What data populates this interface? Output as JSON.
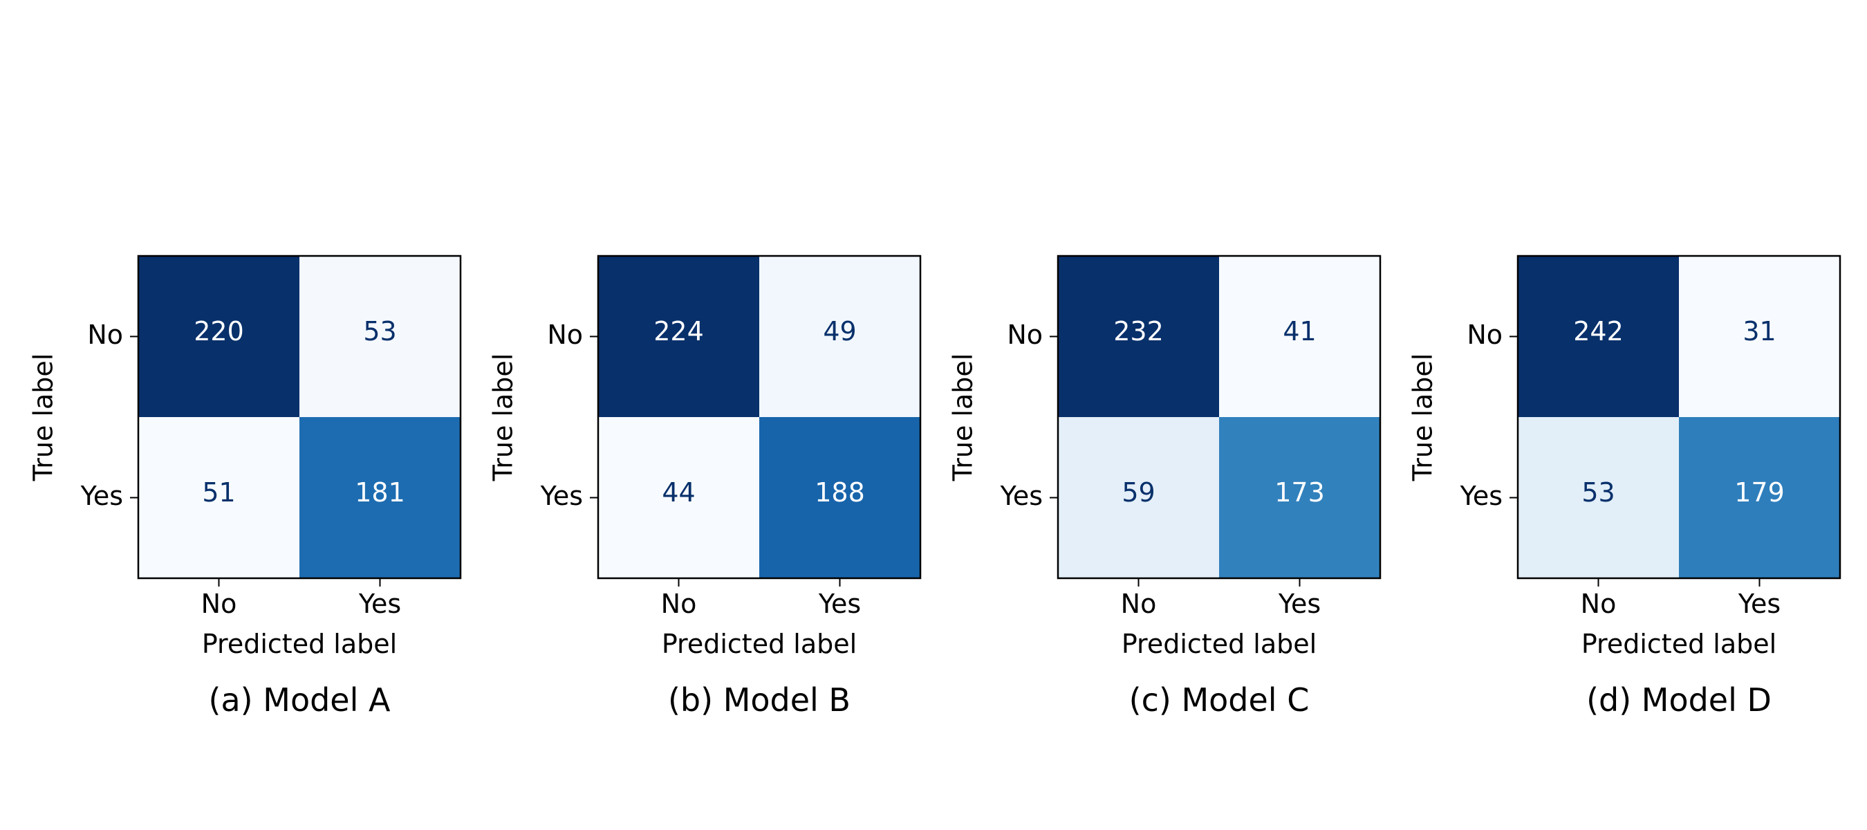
{
  "chart_data": [
    {
      "type": "heatmap",
      "caption": "(a) Model A",
      "xlabel": "Predicted label",
      "ylabel": "True label",
      "x_categories": [
        "No",
        "Yes"
      ],
      "y_categories": [
        "No",
        "Yes"
      ],
      "matrix": [
        [
          220,
          53
        ],
        [
          51,
          181
        ]
      ],
      "colormap": "Blues"
    },
    {
      "type": "heatmap",
      "caption": "(b) Model B",
      "xlabel": "Predicted label",
      "ylabel": "True label",
      "x_categories": [
        "No",
        "Yes"
      ],
      "y_categories": [
        "No",
        "Yes"
      ],
      "matrix": [
        [
          224,
          49
        ],
        [
          44,
          188
        ]
      ],
      "colormap": "Blues"
    },
    {
      "type": "heatmap",
      "caption": "(c) Model C",
      "xlabel": "Predicted label",
      "ylabel": "True label",
      "x_categories": [
        "No",
        "Yes"
      ],
      "y_categories": [
        "No",
        "Yes"
      ],
      "matrix": [
        [
          232,
          41
        ],
        [
          59,
          173
        ]
      ],
      "colormap": "Blues"
    },
    {
      "type": "heatmap",
      "caption": "(d) Model D",
      "xlabel": "Predicted label",
      "ylabel": "True label",
      "x_categories": [
        "No",
        "Yes"
      ],
      "y_categories": [
        "No",
        "Yes"
      ],
      "matrix": [
        [
          242,
          31
        ],
        [
          53,
          179
        ]
      ],
      "colormap": "Blues"
    }
  ],
  "colors": {
    "text_on_dark": "#ffffff",
    "text_on_light": "#08306b",
    "frame": "#000000"
  }
}
